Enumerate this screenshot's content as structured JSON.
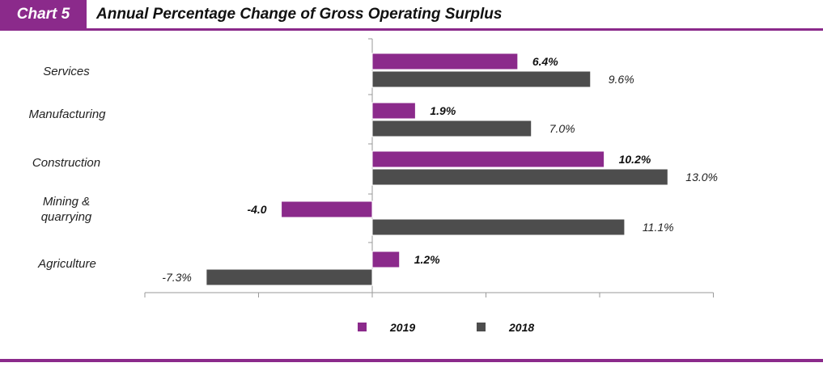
{
  "header": {
    "badge": "Chart  5",
    "title": "Annual Percentage Change of Gross Operating Surplus"
  },
  "colors": {
    "accent": "#8b2a8b",
    "series_2019": "#8b2a8b",
    "series_2018": "#4d4d4d"
  },
  "chart_data": {
    "type": "bar",
    "orientation": "horizontal",
    "categories": [
      "Services",
      "Manufacturing",
      "Construction",
      "Mining &\nquarrying",
      "Agriculture"
    ],
    "series": [
      {
        "name": "2019",
        "values": [
          6.4,
          1.9,
          10.2,
          -4.0,
          1.2
        ],
        "labels": [
          "6.4%",
          "1.9%",
          "10.2%",
          "-4.0",
          "1.2%"
        ]
      },
      {
        "name": "2018",
        "values": [
          9.6,
          7.0,
          13.0,
          11.1,
          -7.3
        ],
        "labels": [
          "9.6%",
          "7.0%",
          "13.0%",
          "11.1%",
          "-7.3%"
        ]
      }
    ],
    "xlim": [
      -10,
      15
    ],
    "xticks": [
      -10,
      -5,
      0,
      5,
      10,
      15
    ],
    "grid": false,
    "legend": "bottom-center"
  }
}
